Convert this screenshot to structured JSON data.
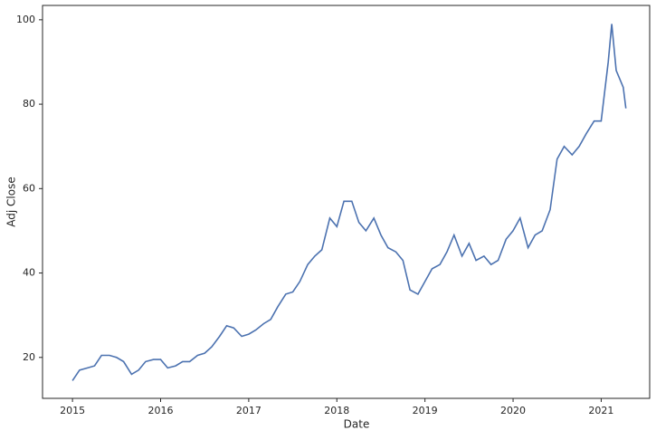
{
  "chart_data": {
    "type": "line",
    "x_label": "Date",
    "y_label": "Adj Close",
    "x": [
      2015.0,
      2015.08,
      2015.17,
      2015.25,
      2015.33,
      2015.42,
      2015.5,
      2015.58,
      2015.67,
      2015.75,
      2015.83,
      2015.92,
      2016.0,
      2016.08,
      2016.17,
      2016.25,
      2016.33,
      2016.42,
      2016.5,
      2016.58,
      2016.67,
      2016.75,
      2016.83,
      2016.92,
      2017.0,
      2017.08,
      2017.17,
      2017.25,
      2017.33,
      2017.42,
      2017.5,
      2017.58,
      2017.67,
      2017.75,
      2017.83,
      2017.92,
      2018.0,
      2018.08,
      2018.17,
      2018.25,
      2018.33,
      2018.42,
      2018.5,
      2018.58,
      2018.67,
      2018.75,
      2018.83,
      2018.92,
      2019.0,
      2019.08,
      2019.17,
      2019.25,
      2019.33,
      2019.42,
      2019.5,
      2019.58,
      2019.67,
      2019.75,
      2019.83,
      2019.92,
      2020.0,
      2020.08,
      2020.17,
      2020.25,
      2020.33,
      2020.42,
      2020.5,
      2020.58,
      2020.67,
      2020.75,
      2020.83,
      2020.92,
      2021.0,
      2021.08,
      2021.12,
      2021.17,
      2021.25,
      2021.28
    ],
    "series": [
      {
        "name": "Adj Close",
        "color": "#4c72b0",
        "values": [
          14.5,
          17,
          17.5,
          18,
          20.5,
          20.5,
          20,
          19,
          16,
          17,
          19,
          19.5,
          19.5,
          17.5,
          18,
          19,
          19,
          20.5,
          21,
          22.5,
          25,
          27.5,
          27,
          25,
          25.5,
          26.5,
          28,
          29,
          32,
          35,
          35.5,
          38,
          42,
          44,
          45.5,
          53,
          51,
          57,
          57,
          52,
          50,
          53,
          49,
          46,
          45,
          43,
          36,
          35,
          38,
          41,
          42,
          45,
          49,
          44,
          47,
          43,
          44,
          42,
          43,
          48,
          50,
          53,
          46,
          49,
          50,
          55,
          67,
          70,
          68,
          70,
          73,
          76,
          76,
          90,
          99,
          88,
          84,
          79
        ]
      }
    ],
    "xlim": [
      2014.66,
      2021.55
    ],
    "xticks": [
      2015,
      2016,
      2017,
      2018,
      2019,
      2020,
      2021
    ],
    "ylim": [
      10.3,
      103.4
    ],
    "yticks": [
      20,
      40,
      60,
      80,
      100
    ]
  }
}
